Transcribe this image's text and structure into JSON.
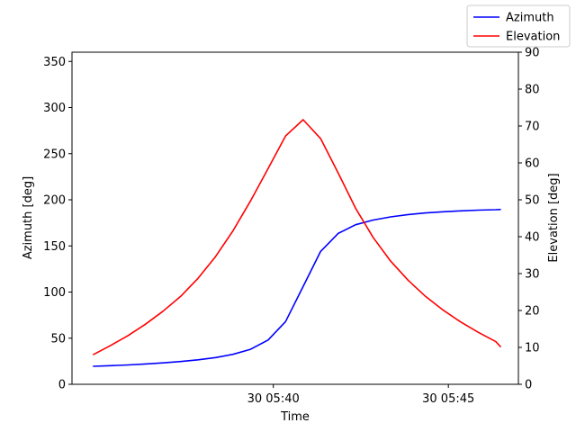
{
  "chart_data": {
    "type": "line",
    "xlabel": "Time",
    "ylabel_left": "Azimuth [deg]",
    "ylabel_right": "Elevation [deg]",
    "x_tick_labels": [
      "30 05:40",
      "30 05:45"
    ],
    "x_tick_minutes": [
      5.0,
      10.0
    ],
    "xlim_minutes": [
      -0.75,
      12.0
    ],
    "left_axis": {
      "ylim": [
        0,
        360
      ],
      "ticks": [
        0,
        50,
        100,
        150,
        200,
        250,
        300,
        350
      ]
    },
    "right_axis": {
      "ylim": [
        0,
        90
      ],
      "ticks": [
        0,
        10,
        20,
        30,
        40,
        50,
        60,
        70,
        80,
        90
      ]
    },
    "x_minutes": [
      -0.15,
      0.35,
      0.85,
      1.35,
      1.85,
      2.35,
      2.85,
      3.35,
      3.85,
      4.35,
      4.85,
      5.35,
      5.85,
      6.35,
      6.85,
      7.35,
      7.85,
      8.35,
      8.85,
      9.35,
      9.85,
      10.35,
      10.85,
      11.35,
      11.5
    ],
    "series": [
      {
        "name": "Azimuth",
        "axis": "left",
        "color": "#0000ff",
        "values": [
          19.5,
          20.2,
          21.0,
          22.0,
          23.2,
          24.7,
          26.5,
          29.0,
          32.5,
          38.0,
          48.0,
          68.0,
          106.0,
          144.0,
          163.5,
          173.0,
          178.0,
          181.5,
          184.0,
          185.8,
          187.0,
          188.0,
          188.8,
          189.3,
          189.6
        ]
      },
      {
        "name": "Elevation",
        "axis": "right",
        "color": "#ff0000",
        "values": [
          8.0,
          10.5,
          13.2,
          16.3,
          19.8,
          23.8,
          28.7,
          34.6,
          41.6,
          49.7,
          58.5,
          67.3,
          71.7,
          66.6,
          57.3,
          47.7,
          39.8,
          33.4,
          28.2,
          23.8,
          20.1,
          16.9,
          14.1,
          11.6,
          10.1
        ]
      }
    ],
    "legend": {
      "placement": "top-right",
      "entries": [
        "Azimuth",
        "Elevation"
      ]
    },
    "grid": false
  }
}
